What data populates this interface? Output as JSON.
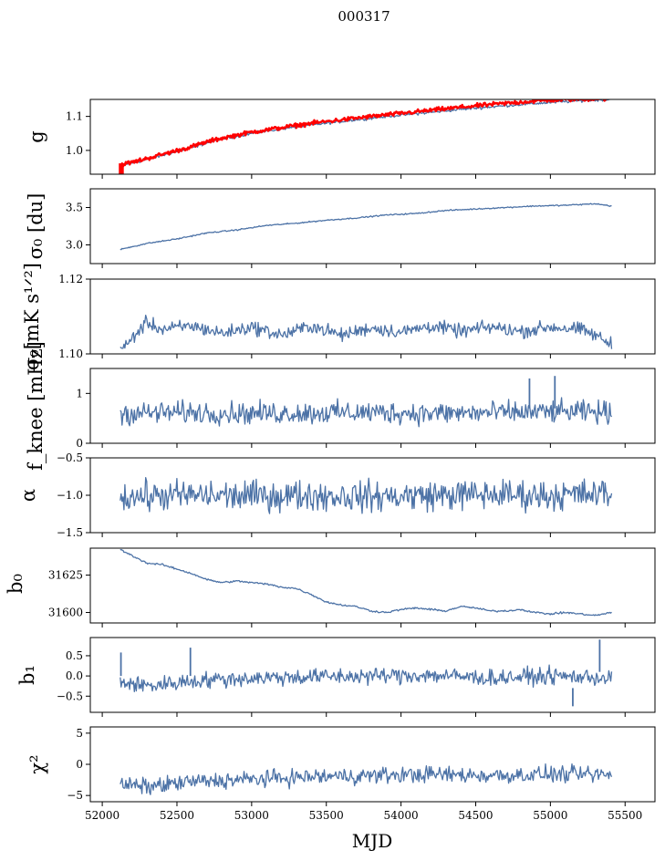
{
  "figure": {
    "title": "000317"
  },
  "chart_data": [
    {
      "type": "line",
      "key": "g",
      "ylabel": "g",
      "ylim": [
        0.93,
        1.15
      ],
      "yticks": [
        1.0,
        1.1
      ],
      "ytick_labels": [
        "1.0",
        "1.1"
      ],
      "xlim": [
        51920,
        55700
      ],
      "series": [
        {
          "color": "#4c72a6",
          "width": 1.3,
          "noise": 0.002,
          "x": [
            52120,
            52200,
            52400,
            52600,
            52700,
            52800,
            53000,
            53200,
            53400,
            53600,
            53800,
            54000,
            54200,
            54400,
            54600,
            54800,
            55000,
            55200,
            55400
          ],
          "y": [
            0.955,
            0.962,
            0.985,
            1.008,
            1.022,
            1.033,
            1.05,
            1.063,
            1.075,
            1.085,
            1.095,
            1.104,
            1.112,
            1.121,
            1.128,
            1.135,
            1.141,
            1.146,
            1.15
          ]
        },
        {
          "color": "#ff0000",
          "width": 2.5,
          "noise": 0.003,
          "x": [
            52120,
            52200,
            52400,
            52600,
            52700,
            52800,
            53000,
            53200,
            53400,
            53600,
            53800,
            54000,
            54200,
            54400,
            54600,
            54800,
            55000,
            55200,
            55400
          ],
          "y": [
            0.958,
            0.965,
            0.988,
            1.011,
            1.025,
            1.036,
            1.054,
            1.067,
            1.08,
            1.09,
            1.1,
            1.109,
            1.118,
            1.127,
            1.135,
            1.142,
            1.148,
            1.151,
            1.152
          ],
          "spikes": [
            {
              "x": 52120,
              "y0": 0.93,
              "y1": 0.962
            },
            {
              "x": 52135,
              "y0": 0.93,
              "y1": 0.96
            }
          ]
        }
      ]
    },
    {
      "type": "line",
      "key": "sigma0_du",
      "ylabel": "σ₀ [du]",
      "ylim": [
        2.75,
        3.75
      ],
      "yticks": [
        3.0,
        3.5
      ],
      "ytick_labels": [
        "3.0",
        "3.5"
      ],
      "xlim": [
        51920,
        55700
      ],
      "series": [
        {
          "color": "#4c72a6",
          "width": 1.3,
          "noise": 0.004,
          "x": [
            52120,
            52300,
            52500,
            52700,
            52900,
            53100,
            53300,
            53500,
            53700,
            53900,
            54100,
            54300,
            54500,
            54700,
            54900,
            55100,
            55300,
            55410
          ],
          "y": [
            2.94,
            3.02,
            3.08,
            3.16,
            3.2,
            3.26,
            3.29,
            3.33,
            3.36,
            3.4,
            3.42,
            3.46,
            3.48,
            3.5,
            3.52,
            3.53,
            3.55,
            3.52
          ]
        }
      ]
    },
    {
      "type": "line",
      "key": "sigma0_mk",
      "ylabel": "σ₀[mK s¹ᐟ²]",
      "ylim": [
        1.1,
        1.12
      ],
      "yticks": [
        1.1,
        1.12
      ],
      "ytick_labels": [
        "1.10",
        "1.12"
      ],
      "xlim": [
        51920,
        55700
      ],
      "series": [
        {
          "color": "#4c72a6",
          "width": 1.3,
          "noise": 0.0009,
          "x": [
            52120,
            52140,
            52200,
            52300,
            52400,
            52600,
            52800,
            53000,
            53200,
            53400,
            53600,
            53800,
            54000,
            54200,
            54400,
            54600,
            54800,
            55000,
            55200,
            55300,
            55410
          ],
          "y": [
            1.102,
            1.1012,
            1.1042,
            1.1085,
            1.1065,
            1.1075,
            1.1055,
            1.1072,
            1.105,
            1.1075,
            1.105,
            1.107,
            1.1058,
            1.1075,
            1.106,
            1.1072,
            1.106,
            1.1072,
            1.1065,
            1.105,
            1.1025
          ]
        }
      ]
    },
    {
      "type": "line",
      "key": "fknee",
      "ylabel": "f_knee [mHz]",
      "ylim": [
        0,
        1.5
      ],
      "yticks": [
        0,
        1
      ],
      "ytick_labels": [
        "0",
        "1"
      ],
      "xlim": [
        51920,
        55700
      ],
      "series": [
        {
          "color": "#4c72a6",
          "width": 1.3,
          "noise": 0.11,
          "x": [
            52120,
            52600,
            53000,
            53400,
            53800,
            54200,
            54600,
            55000,
            55410
          ],
          "y": [
            0.6,
            0.62,
            0.6,
            0.61,
            0.62,
            0.6,
            0.61,
            0.63,
            0.62
          ],
          "spikes": [
            {
              "x": 54860,
              "y0": 0.7,
              "y1": 1.3
            },
            {
              "x": 55030,
              "y0": 0.7,
              "y1": 1.35
            }
          ]
        }
      ]
    },
    {
      "type": "line",
      "key": "alpha",
      "ylabel": "α",
      "ylim": [
        -1.5,
        -0.5
      ],
      "yticks": [
        -1.5,
        -1.0,
        -0.5
      ],
      "ytick_labels": [
        "−1.5",
        "−1.0",
        "−0.5"
      ],
      "xlim": [
        51920,
        55700
      ],
      "series": [
        {
          "color": "#4c72a6",
          "width": 1.3,
          "noise": 0.1,
          "x": [
            52120,
            52600,
            53000,
            53400,
            53800,
            54200,
            54600,
            55000,
            55410
          ],
          "y": [
            -1.02,
            -1.0,
            -1.01,
            -1.0,
            -1.02,
            -1.0,
            -0.99,
            -1.0,
            -0.98
          ]
        }
      ]
    },
    {
      "type": "line",
      "key": "b0",
      "ylabel": "b₀",
      "ylim": [
        31593,
        31643
      ],
      "yticks": [
        31600,
        31625
      ],
      "ytick_labels": [
        "31600",
        "31625"
      ],
      "xlim": [
        51920,
        55700
      ],
      "series": [
        {
          "color": "#4c72a6",
          "width": 1.3,
          "noise": 0.3,
          "x": [
            52120,
            52200,
            52300,
            52400,
            52500,
            52600,
            52700,
            52800,
            52900,
            53000,
            53100,
            53200,
            53300,
            53400,
            53500,
            53600,
            53700,
            53800,
            53900,
            54000,
            54100,
            54200,
            54300,
            54400,
            54500,
            54600,
            54700,
            54800,
            54900,
            55000,
            55100,
            55200,
            55300,
            55410
          ],
          "y": [
            31642,
            31638,
            31633,
            31632,
            31629,
            31626,
            31622,
            31620,
            31621,
            31620,
            31619,
            31617,
            31616,
            31612,
            31607,
            31605,
            31604,
            31601,
            31600,
            31602,
            31603,
            31602,
            31601,
            31604,
            31603,
            31601,
            31601,
            31602,
            31600,
            31599,
            31600,
            31599,
            31598,
            31600
          ]
        }
      ]
    },
    {
      "type": "line",
      "key": "b1",
      "ylabel": "b₁",
      "ylim": [
        -0.9,
        0.95
      ],
      "yticks": [
        -0.5,
        0.0,
        0.5
      ],
      "ytick_labels": [
        "−0.5",
        "0.0",
        "0.5"
      ],
      "xlim": [
        51920,
        55700
      ],
      "series": [
        {
          "color": "#4c72a6",
          "width": 1.3,
          "noise": 0.1,
          "x": [
            52120,
            52300,
            52600,
            53000,
            53400,
            53800,
            54200,
            54600,
            55000,
            55410
          ],
          "y": [
            -0.15,
            -0.25,
            -0.12,
            -0.05,
            -0.02,
            0.0,
            0.02,
            -0.05,
            0.0,
            -0.05
          ],
          "spikes": [
            {
              "x": 52125,
              "y0": 0.0,
              "y1": 0.58
            },
            {
              "x": 52590,
              "y0": 0.0,
              "y1": 0.7
            },
            {
              "x": 55150,
              "y0": -0.3,
              "y1": -0.75
            },
            {
              "x": 55330,
              "y0": 0.1,
              "y1": 0.9
            }
          ]
        }
      ]
    },
    {
      "type": "line",
      "key": "chi2",
      "ylabel": "χ²",
      "ylim": [
        -6,
        6
      ],
      "yticks": [
        -5,
        0,
        5
      ],
      "ytick_labels": [
        "−5",
        "0",
        "5"
      ],
      "xlim": [
        51920,
        55700
      ],
      "xticks": [
        52000,
        52500,
        53000,
        53500,
        54000,
        54500,
        55000,
        55500
      ],
      "xtick_labels": [
        "52000",
        "52500",
        "53000",
        "53500",
        "54000",
        "54500",
        "55000",
        "55500"
      ],
      "xlabel": "MJD",
      "series": [
        {
          "color": "#4c72a6",
          "width": 1.3,
          "noise": 0.65,
          "x": [
            52120,
            52300,
            52600,
            53000,
            53400,
            53800,
            54200,
            54600,
            55000,
            55410
          ],
          "y": [
            -3.2,
            -3.6,
            -2.8,
            -2.4,
            -2.0,
            -1.8,
            -1.6,
            -1.8,
            -1.6,
            -1.7
          ]
        }
      ]
    }
  ]
}
